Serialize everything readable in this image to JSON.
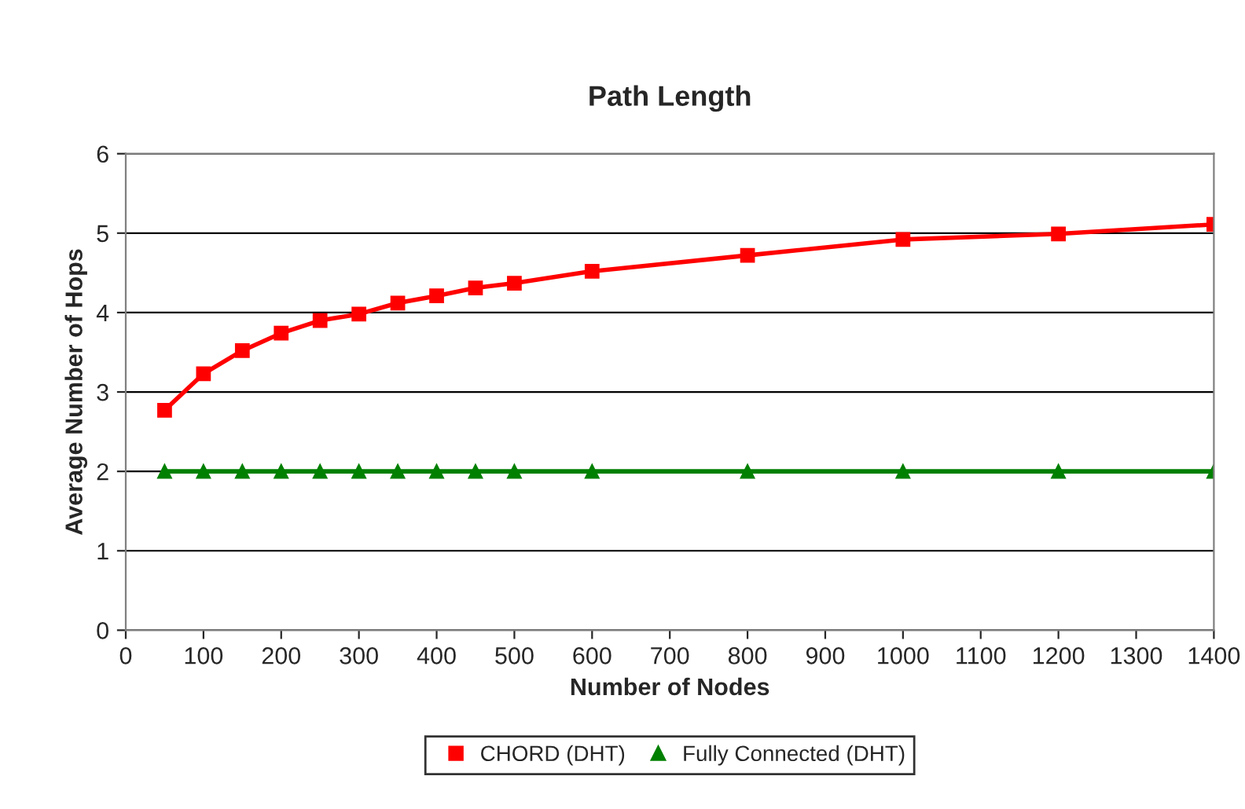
{
  "chart_data": {
    "type": "line",
    "title": "Path Length",
    "xlabel": "Number of Nodes",
    "ylabel": "Average Number of Hops",
    "x": [
      50,
      100,
      150,
      200,
      250,
      300,
      350,
      400,
      450,
      500,
      600,
      800,
      1000,
      1200,
      1400
    ],
    "series": [
      {
        "name": "CHORD (DHT)",
        "color": "#ff0000",
        "marker": "square",
        "values": [
          2.77,
          3.23,
          3.52,
          3.74,
          3.9,
          3.98,
          4.12,
          4.21,
          4.31,
          4.37,
          4.52,
          4.72,
          4.92,
          4.99,
          5.11
        ]
      },
      {
        "name": "Fully Connected (DHT)",
        "color": "#008000",
        "marker": "triangle",
        "values": [
          2,
          2,
          2,
          2,
          2,
          2,
          2,
          2,
          2,
          2,
          2,
          2,
          2,
          2,
          2
        ]
      }
    ],
    "xlim": [
      0,
      1400
    ],
    "xticks": [
      0,
      100,
      200,
      300,
      400,
      500,
      600,
      700,
      800,
      900,
      1000,
      1100,
      1200,
      1300,
      1400
    ],
    "ylim": [
      0,
      6
    ],
    "yticks": [
      0,
      1,
      2,
      3,
      4,
      5,
      6
    ],
    "grid": "y",
    "legend": "bottom",
    "line_style": "solid"
  }
}
